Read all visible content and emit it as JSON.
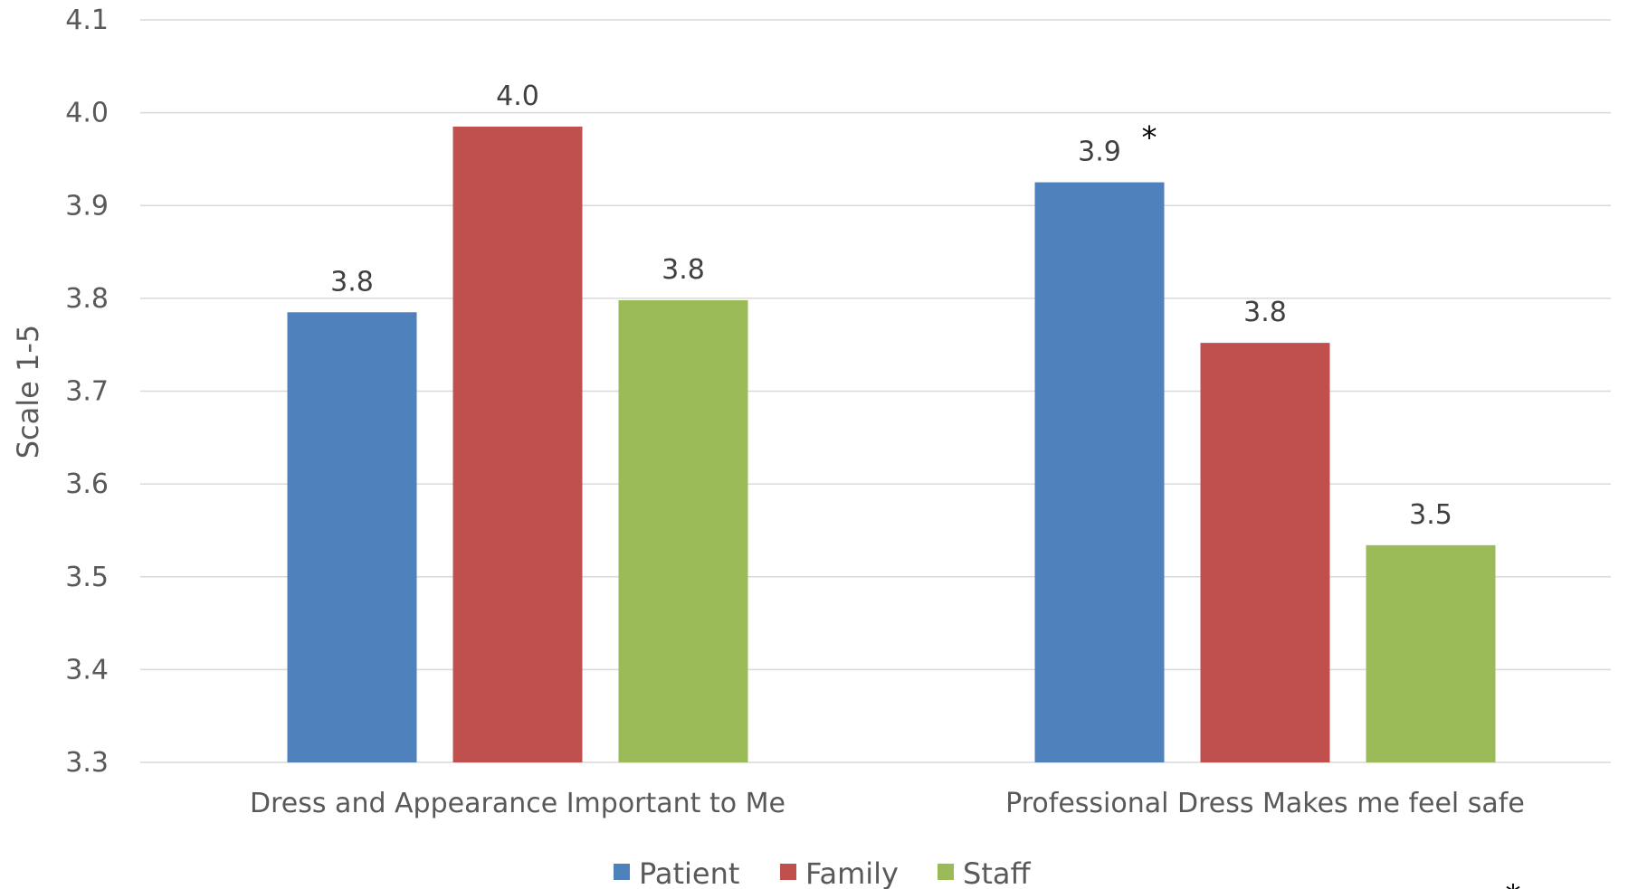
{
  "chart_data": {
    "type": "bar",
    "categories": [
      "Dress and Appearance Important to Me",
      "Professional Dress Makes me feel safe"
    ],
    "series": [
      {
        "name": "Patient",
        "color": "#4f81bd",
        "values": [
          3.785,
          3.925
        ],
        "labels": [
          "3.8",
          "3.9"
        ]
      },
      {
        "name": "Family",
        "color": "#c0504d",
        "values": [
          3.985,
          3.752
        ],
        "labels": [
          "4.0",
          "3.8"
        ]
      },
      {
        "name": "Staff",
        "color": "#9bbb59",
        "values": [
          3.798,
          3.534
        ],
        "labels": [
          "3.8",
          "3.5"
        ]
      }
    ],
    "ylabel": "Scale 1-5",
    "ylim": [
      3.3,
      4.1
    ],
    "yticks": [
      "3.3",
      "3.4",
      "3.5",
      "3.6",
      "3.7",
      "3.8",
      "3.9",
      "4.0",
      "4.1"
    ],
    "grid": true,
    "legend_position": "bottom",
    "annotations": [
      {
        "text": "*",
        "category": 1,
        "series": 0
      },
      {
        "text": "*",
        "position": "bottom-right"
      }
    ]
  }
}
